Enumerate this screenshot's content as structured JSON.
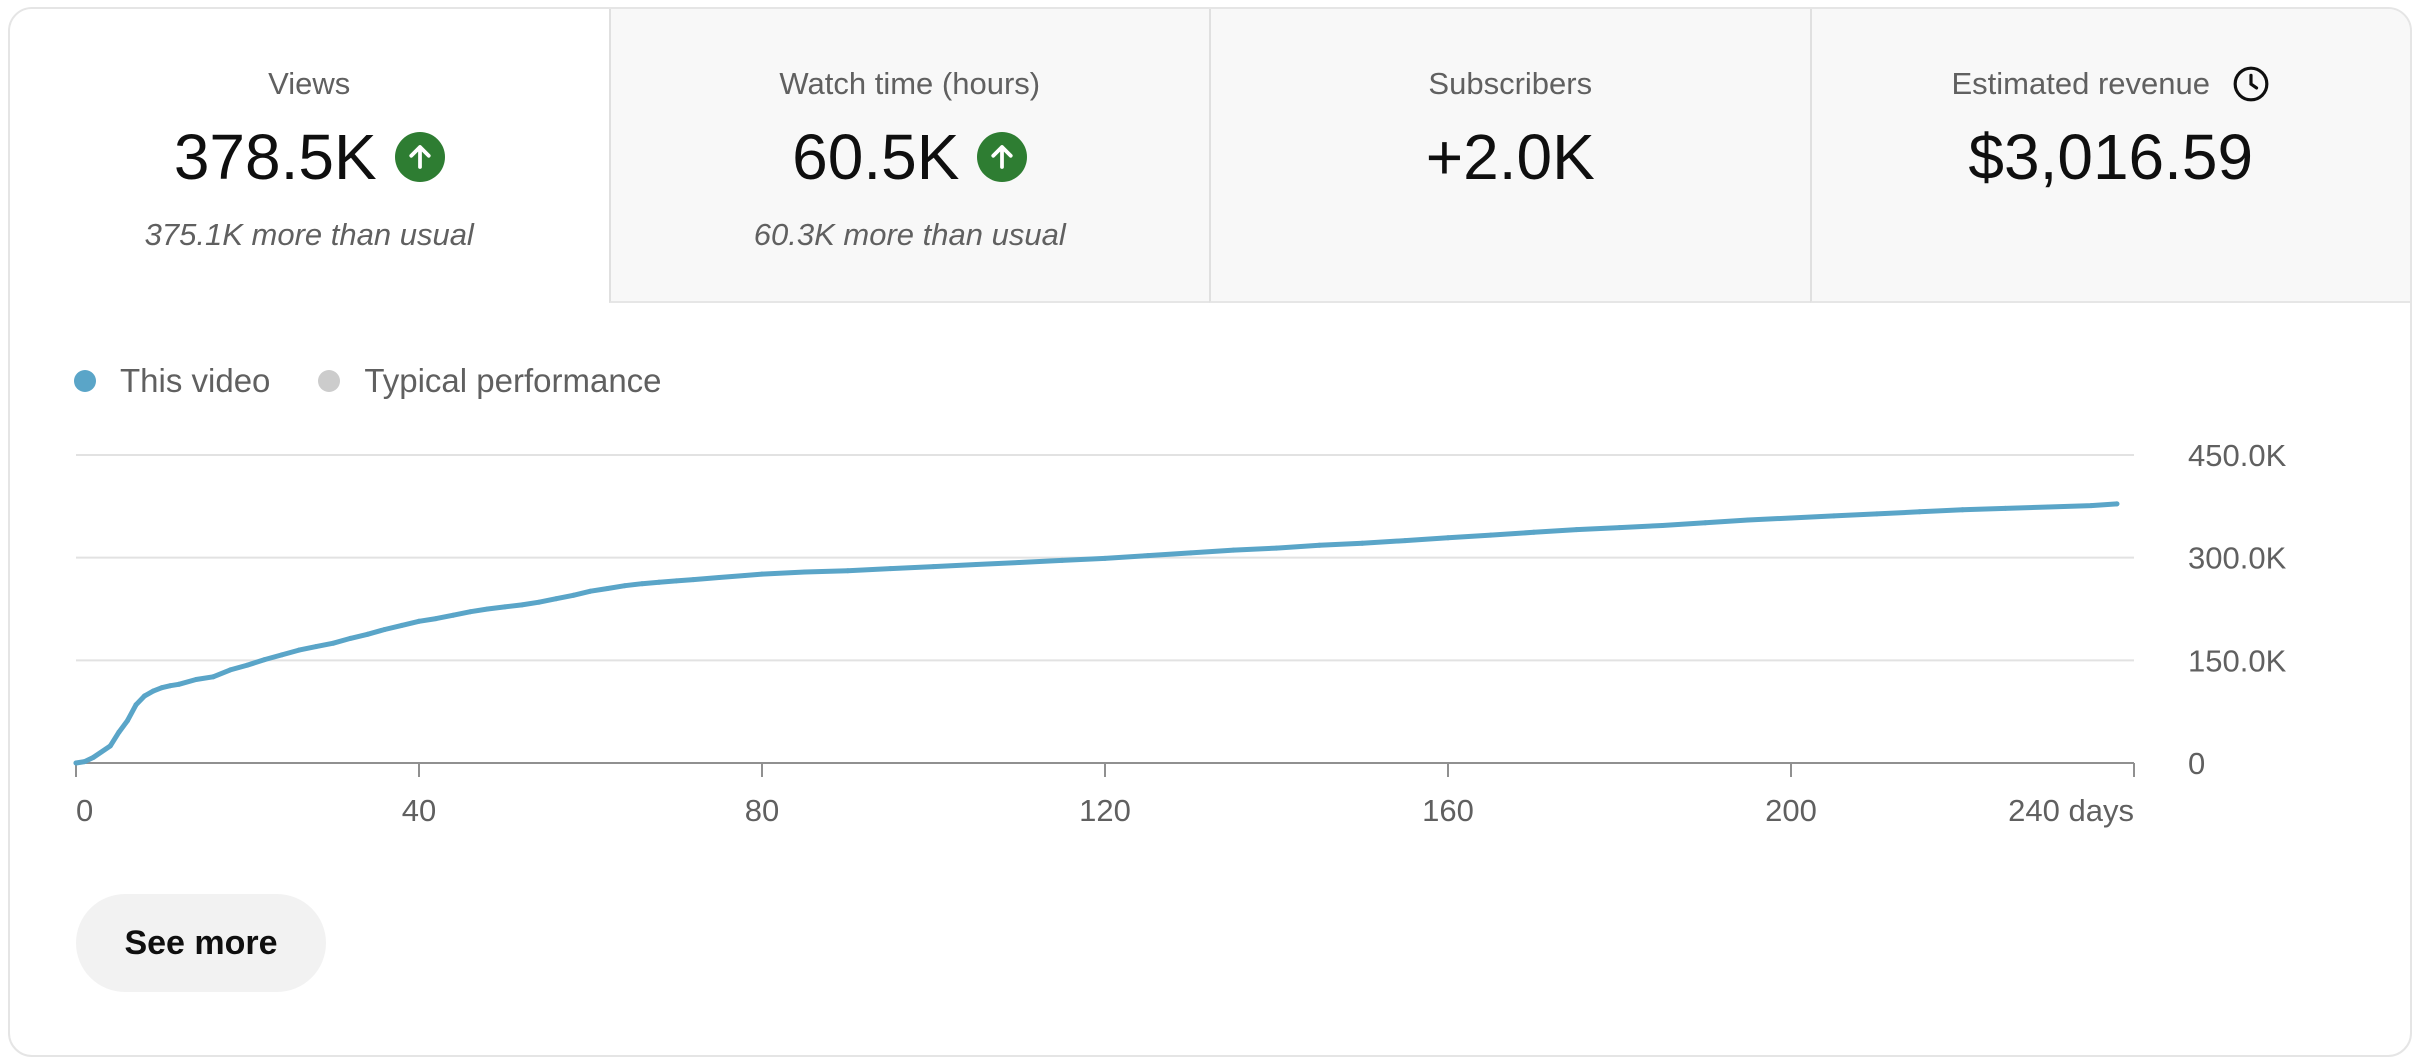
{
  "metrics": [
    {
      "label": "Views",
      "value": "378.5K",
      "sub": "375.1K more than usual",
      "trend": "up",
      "active": true
    },
    {
      "label": "Watch time (hours)",
      "value": "60.5K",
      "sub": "60.3K more than usual",
      "trend": "up",
      "active": false
    },
    {
      "label": "Subscribers",
      "value": "+2.0K",
      "sub": "",
      "trend": "none",
      "active": false
    },
    {
      "label": "Estimated revenue",
      "value": "$3,016.59",
      "sub": "",
      "trend": "none",
      "active": false,
      "icon": "clock-icon"
    }
  ],
  "colors": {
    "series_this_video": "#5aa5c8",
    "series_typical": "#cccccc",
    "trend_up": "#2e7d32"
  },
  "legend": [
    {
      "label": "This video",
      "color": "#5aa5c8"
    },
    {
      "label": "Typical performance",
      "color": "#cccccc"
    }
  ],
  "chart_data": {
    "type": "line",
    "title": "",
    "xlabel": "",
    "ylabel": "",
    "x_ticks": [
      "0",
      "40",
      "80",
      "120",
      "160",
      "200",
      "240 days"
    ],
    "y_ticks": [
      "0",
      "150.0K",
      "300.0K",
      "450.0K"
    ],
    "xlim": [
      0,
      240
    ],
    "ylim": [
      0,
      450000
    ],
    "grid": true,
    "legend_position": "top-left",
    "series": [
      {
        "name": "This video",
        "color": "#5aa5c8",
        "x": [
          0,
          1,
          2,
          4,
          5,
          6,
          7,
          8,
          9,
          10,
          11,
          12,
          14,
          16,
          18,
          20,
          22,
          24,
          26,
          28,
          30,
          32,
          34,
          36,
          38,
          40,
          42,
          44,
          46,
          48,
          50,
          52,
          54,
          56,
          58,
          60,
          62,
          64,
          66,
          68,
          70,
          72,
          75,
          78,
          80,
          85,
          90,
          95,
          100,
          105,
          110,
          115,
          120,
          125,
          130,
          135,
          140,
          145,
          150,
          155,
          160,
          165,
          170,
          175,
          180,
          185,
          190,
          195,
          200,
          205,
          210,
          215,
          220,
          225,
          230,
          235,
          238
        ],
        "values": [
          0,
          2000,
          8000,
          25000,
          45000,
          62000,
          85000,
          98000,
          105000,
          110000,
          113000,
          115000,
          122000,
          126000,
          136000,
          143000,
          151000,
          158000,
          165000,
          170000,
          175000,
          182000,
          188000,
          195000,
          201000,
          207000,
          211000,
          216000,
          221000,
          225000,
          228000,
          231000,
          235000,
          240000,
          245000,
          251000,
          255000,
          259000,
          262000,
          264000,
          266000,
          268000,
          271000,
          274000,
          276000,
          279000,
          281000,
          284000,
          287000,
          290000,
          293000,
          296000,
          299000,
          303000,
          307000,
          311000,
          314000,
          318000,
          321000,
          325000,
          329000,
          333000,
          337000,
          341000,
          344000,
          347000,
          351000,
          355000,
          358000,
          361000,
          364000,
          367000,
          370000,
          372000,
          374000,
          376000,
          378500
        ]
      }
    ]
  },
  "button": {
    "see_more": "See more"
  }
}
